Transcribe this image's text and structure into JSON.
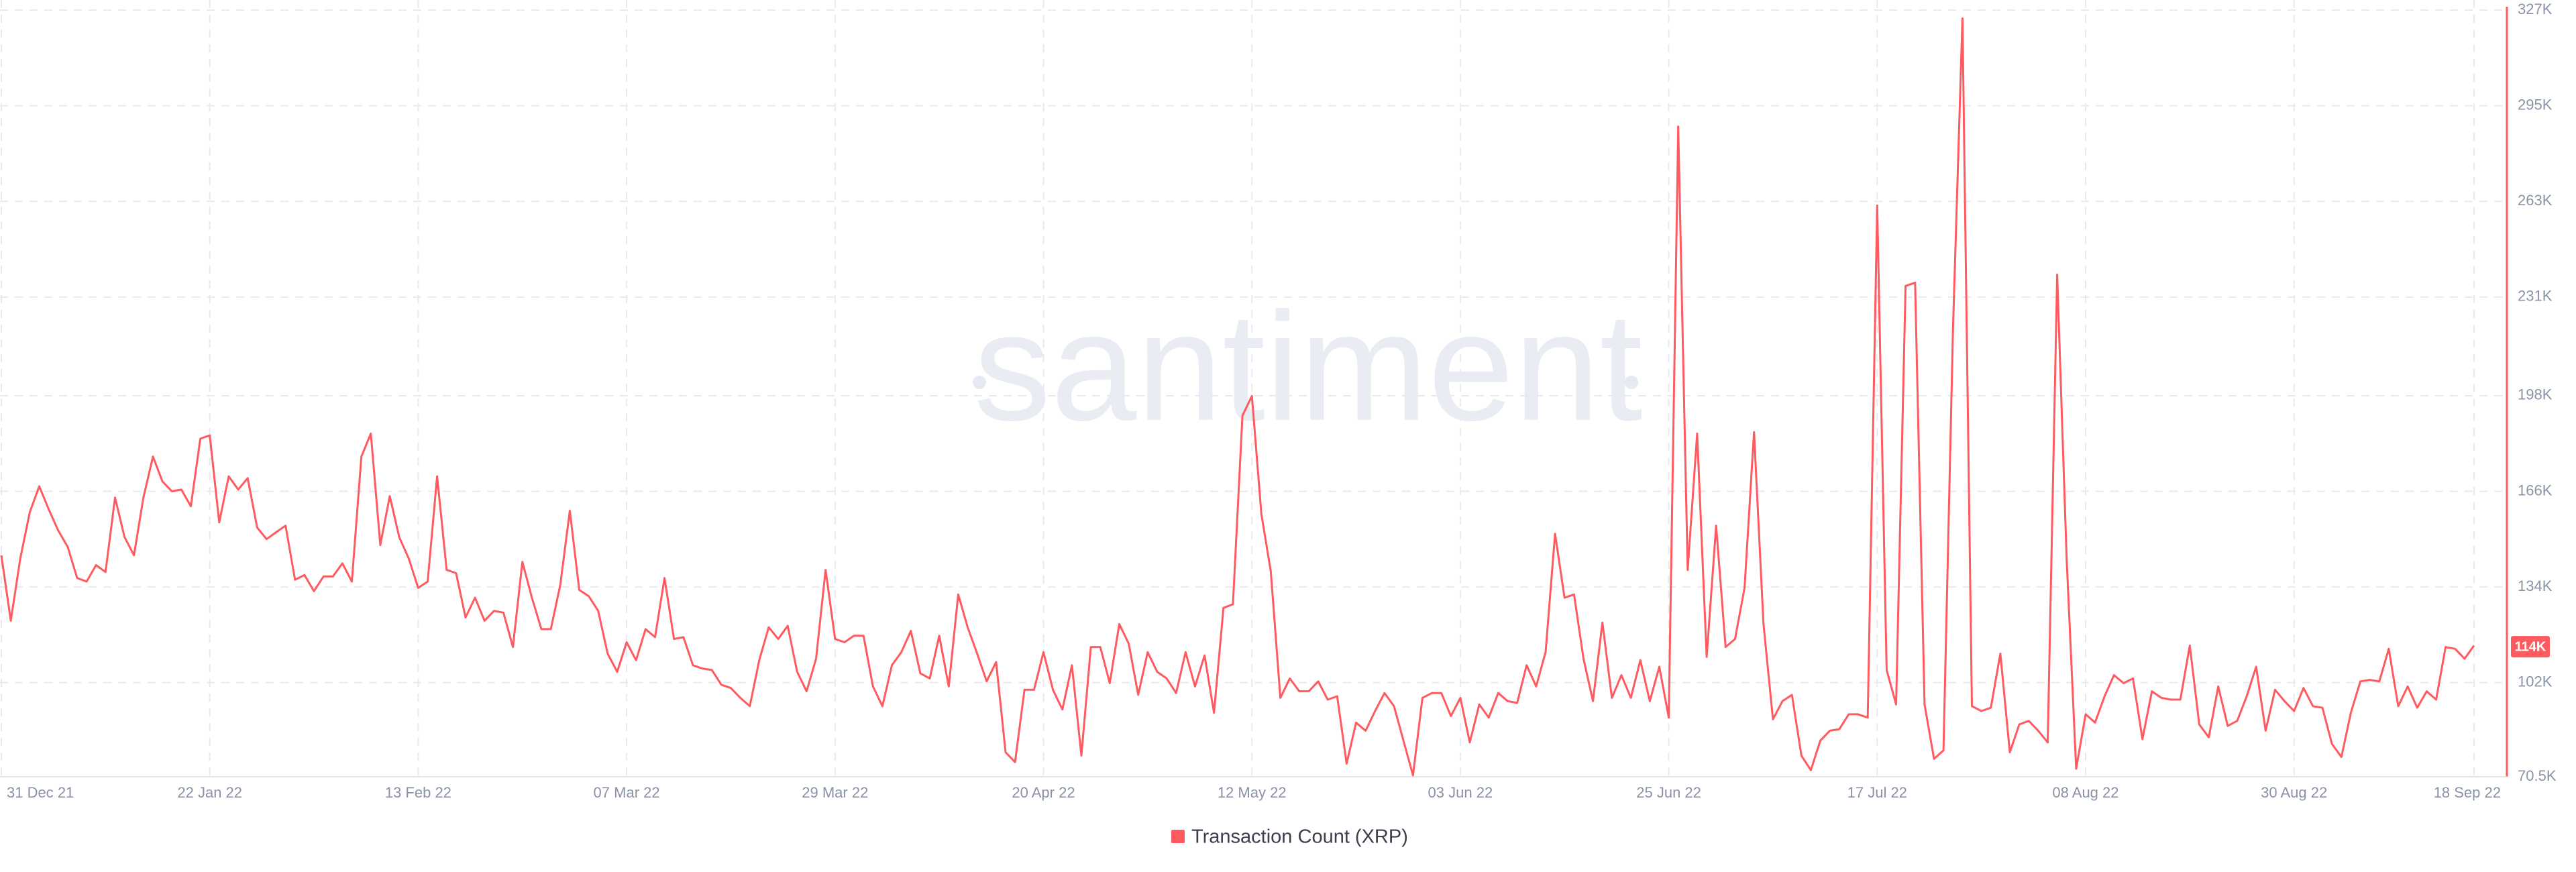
{
  "chart_data": {
    "type": "line",
    "watermark": "santiment",
    "categories": [
      "31 Dec 21",
      null,
      null,
      null,
      null,
      null,
      null,
      null,
      null,
      null,
      null,
      null,
      null,
      null,
      null,
      null,
      null,
      null,
      null,
      null,
      null,
      null,
      "22 Jan 22",
      null,
      null,
      null,
      null,
      null,
      null,
      null,
      null,
      null,
      null,
      null,
      null,
      null,
      null,
      null,
      null,
      null,
      null,
      null,
      null,
      null,
      "13 Feb 22",
      null,
      null,
      null,
      null,
      null,
      null,
      null,
      null,
      null,
      null,
      null,
      null,
      null,
      null,
      null,
      null,
      null,
      null,
      null,
      null,
      null,
      "07 Mar 22",
      null,
      null,
      null,
      null,
      null,
      null,
      null,
      null,
      null,
      null,
      null,
      null,
      null,
      null,
      null,
      null,
      null,
      null,
      null,
      null,
      null,
      "29 Mar 22",
      null,
      null,
      null,
      null,
      null,
      null,
      null,
      null,
      null,
      null,
      null,
      null,
      null,
      null,
      null,
      null,
      null,
      null,
      null,
      null,
      null,
      "20 Apr 22",
      null,
      null,
      null,
      null,
      null,
      null,
      null,
      null,
      null,
      null,
      null,
      null,
      null,
      null,
      null,
      null,
      null,
      null,
      null,
      null,
      null,
      "12 May 22",
      null,
      null,
      null,
      null,
      null,
      null,
      null,
      null,
      null,
      null,
      null,
      null,
      null,
      null,
      null,
      null,
      null,
      null,
      null,
      null,
      null,
      "03 Jun 22",
      null,
      null,
      null,
      null,
      null,
      null,
      null,
      null,
      null,
      null,
      null,
      null,
      null,
      null,
      null,
      null,
      null,
      null,
      null,
      null,
      null,
      "25 Jun 22",
      null,
      null,
      null,
      null,
      null,
      null,
      null,
      null,
      null,
      null,
      null,
      null,
      null,
      null,
      null,
      null,
      null,
      null,
      null,
      null,
      null,
      "17 Jul 22",
      null,
      null,
      null,
      null,
      null,
      null,
      null,
      null,
      null,
      null,
      null,
      null,
      null,
      null,
      null,
      null,
      null,
      null,
      null,
      null,
      null,
      "08 Aug 22",
      null,
      null,
      null,
      null,
      null,
      null,
      null,
      null,
      null,
      null,
      null,
      null,
      null,
      null,
      null,
      null,
      null,
      null,
      null,
      null,
      null,
      "30 Aug 22",
      null,
      null,
      null,
      null,
      null,
      null,
      null,
      null,
      null,
      null,
      null,
      null,
      null,
      null,
      null,
      null,
      null,
      null,
      "18 Sep 22"
    ],
    "series": [
      {
        "name": "Transaction Count (XRP)",
        "color": "#ff5a5f",
        "values": [
          144600,
          122700,
          143500,
          159000,
          167700,
          160000,
          152900,
          147400,
          137000,
          135800,
          141300,
          139000,
          163900,
          150700,
          144600,
          163900,
          177600,
          169300,
          166000,
          166600,
          161000,
          183600,
          184700,
          155600,
          171000,
          166600,
          170400,
          153900,
          150000,
          152300,
          154500,
          136400,
          138000,
          132600,
          137500,
          137500,
          141900,
          135800,
          177600,
          185300,
          148000,
          164400,
          150700,
          143500,
          133700,
          135800,
          171000,
          139700,
          138600,
          123800,
          130400,
          122700,
          126000,
          125400,
          113900,
          142400,
          130400,
          119900,
          119900,
          134700,
          159500,
          133000,
          130900,
          126000,
          111700,
          105600,
          115500,
          109500,
          119900,
          117200,
          137000,
          116600,
          117200,
          107800,
          106700,
          106200,
          101300,
          100200,
          96900,
          94100,
          109500,
          120500,
          116600,
          121000,
          105600,
          99100,
          110000,
          139700,
          116600,
          115500,
          117700,
          117700,
          100700,
          94100,
          107800,
          112200,
          119300,
          105100,
          103400,
          117700,
          100700,
          131500,
          120500,
          111700,
          102400,
          108900,
          78700,
          75400,
          99600,
          99600,
          112200,
          99600,
          93000,
          107800,
          77600,
          113900,
          113900,
          101800,
          121600,
          115000,
          97900,
          112200,
          105600,
          103400,
          98500,
          112200,
          100700,
          111100,
          91900,
          127000,
          128200,
          191300,
          197900,
          158400,
          139100,
          96900,
          103400,
          99100,
          99100,
          102400,
          96300,
          97400,
          74900,
          88600,
          85900,
          92500,
          98500,
          94100,
          82600,
          71000,
          96900,
          98500,
          98500,
          90800,
          96900,
          82000,
          94700,
          90300,
          98500,
          95800,
          95200,
          107800,
          100700,
          112200,
          151800,
          130400,
          131500,
          110000,
          95800,
          122100,
          96900,
          104500,
          96900,
          109500,
          95800,
          107300,
          90300,
          288000,
          139700,
          185300,
          110600,
          154500,
          113900,
          116600,
          133700,
          185800,
          121600,
          89700,
          95800,
          97900,
          77600,
          72700,
          82600,
          85900,
          86400,
          91400,
          91400,
          90300,
          261600,
          106200,
          94700,
          234700,
          235800,
          94700,
          76500,
          79300,
          220400,
          324200,
          94100,
          92500,
          93600,
          111700,
          78700,
          88000,
          89200,
          85900,
          82000,
          238500,
          143500,
          73200,
          91400,
          88600,
          97400,
          104500,
          101800,
          103400,
          83100,
          99100,
          96900,
          96300,
          96300,
          114400,
          88000,
          83700,
          100700,
          87500,
          89200,
          97400,
          107300,
          85900,
          99600,
          95800,
          92500,
          100200,
          94100,
          93600,
          81500,
          77100,
          91900,
          102400,
          102900,
          102400,
          113300,
          94100,
          100700,
          93600,
          99100,
          96300,
          113900,
          113300,
          110000,
          114400
        ]
      }
    ],
    "ylim": [
      70500,
      327000
    ],
    "yticks": [
      {
        "value": 70500,
        "label": "70.5K"
      },
      {
        "value": 102000,
        "label": "102K"
      },
      {
        "value": 134000,
        "label": "134K"
      },
      {
        "value": 166000,
        "label": "166K"
      },
      {
        "value": 198000,
        "label": "198K"
      },
      {
        "value": 231000,
        "label": "231K"
      },
      {
        "value": 263000,
        "label": "263K"
      },
      {
        "value": 295000,
        "label": "295K"
      },
      {
        "value": 327000,
        "label": "327K"
      }
    ],
    "current_label": {
      "value": 114000,
      "label": "114K"
    },
    "grid": true
  }
}
